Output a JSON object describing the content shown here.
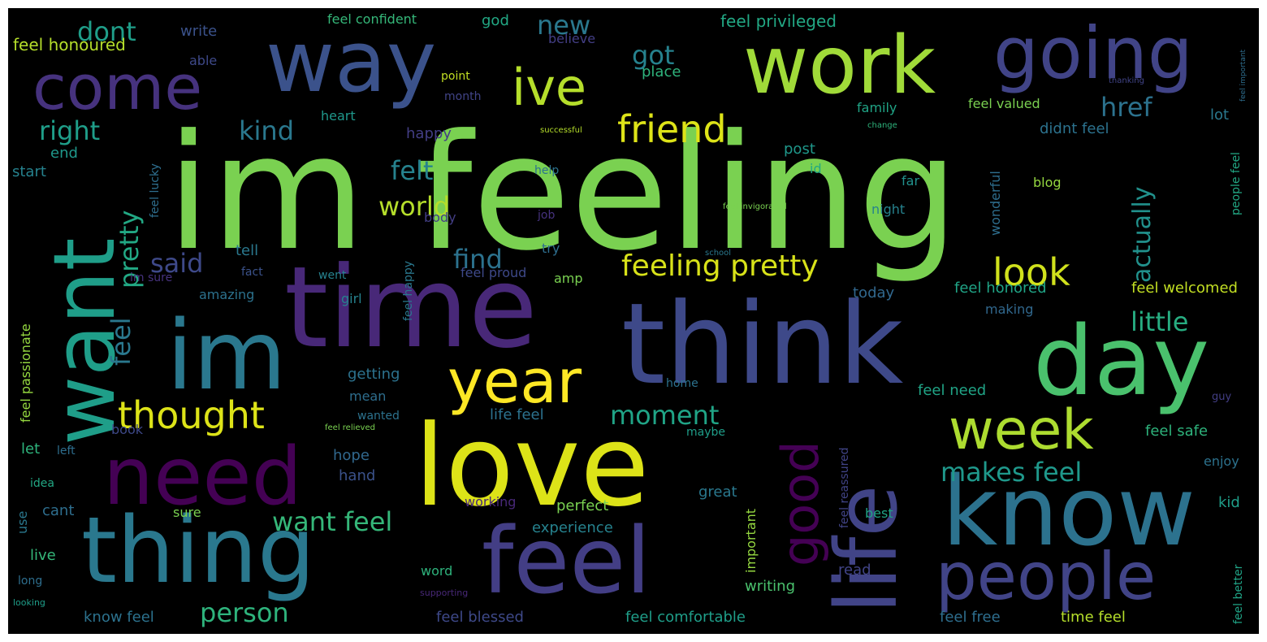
{
  "words": [
    {
      "text": "im feeling",
      "color": "#7ad151"
    },
    {
      "text": "time",
      "color": "#482878"
    },
    {
      "text": "think",
      "color": "#3e4989"
    },
    {
      "text": "love",
      "color": "#dde318"
    },
    {
      "text": "feel",
      "color": "#433e85"
    },
    {
      "text": "thing",
      "color": "#2a788e"
    },
    {
      "text": "know",
      "color": "#2c728e"
    },
    {
      "text": "im",
      "color": "#2a788e"
    },
    {
      "text": "way",
      "color": "#3b528b"
    },
    {
      "text": "work",
      "color": "#a0da39"
    },
    {
      "text": "day",
      "color": "#4ac16d"
    },
    {
      "text": "need",
      "color": "#440154"
    },
    {
      "text": "want",
      "color": "#1f9e89"
    },
    {
      "text": "life",
      "color": "#414487"
    },
    {
      "text": "going",
      "color": "#414487"
    },
    {
      "text": "come",
      "color": "#46327e"
    },
    {
      "text": "people",
      "color": "#414487"
    },
    {
      "text": "year",
      "color": "#fde725"
    },
    {
      "text": "week",
      "color": "#addc30"
    },
    {
      "text": "ive",
      "color": "#b5de2b"
    },
    {
      "text": "good",
      "color": "#440154"
    },
    {
      "text": "thought",
      "color": "#dde318"
    },
    {
      "text": "friend",
      "color": "#dde318"
    },
    {
      "text": "feeling pretty",
      "color": "#d8e219"
    },
    {
      "text": "look",
      "color": "#d0e11c"
    },
    {
      "text": "person",
      "color": "#2eb37c"
    },
    {
      "text": "makes feel",
      "color": "#1f988b"
    },
    {
      "text": "want feel",
      "color": "#35b779"
    },
    {
      "text": "moment",
      "color": "#20a486"
    },
    {
      "text": "little",
      "color": "#27ad81"
    },
    {
      "text": "world",
      "color": "#b5de2b"
    },
    {
      "text": "felt",
      "color": "#26828e"
    },
    {
      "text": "find",
      "color": "#2c728e"
    },
    {
      "text": "said",
      "color": "#3e4989"
    },
    {
      "text": "kind",
      "color": "#2a788e"
    },
    {
      "text": "right",
      "color": "#1f9e89"
    },
    {
      "text": "dont",
      "color": "#1f9e89"
    },
    {
      "text": "got",
      "color": "#26828e"
    },
    {
      "text": "new",
      "color": "#2a788e"
    },
    {
      "text": "href",
      "color": "#2c728e"
    },
    {
      "text": "actually",
      "color": "#21918c"
    },
    {
      "text": "pretty",
      "color": "#22a884"
    },
    {
      "text": "feel",
      "color": "#2a788e"
    },
    {
      "text": "important",
      "color": "#95d840"
    },
    {
      "text": "feel confident",
      "color": "#35b779"
    },
    {
      "text": "feel privileged",
      "color": "#22a884"
    },
    {
      "text": "feel honoured",
      "color": "#b5de2b"
    },
    {
      "text": "write",
      "color": "#3b528b"
    },
    {
      "text": "god",
      "color": "#22a884"
    },
    {
      "text": "believe",
      "color": "#433e85"
    },
    {
      "text": "able",
      "color": "#3e4989"
    },
    {
      "text": "point",
      "color": "#c2df23"
    },
    {
      "text": "place",
      "color": "#2eb37c"
    },
    {
      "text": "month",
      "color": "#414487"
    },
    {
      "text": "heart",
      "color": "#1f988b"
    },
    {
      "text": "happy",
      "color": "#433e85"
    },
    {
      "text": "family",
      "color": "#20a486"
    },
    {
      "text": "feel valued",
      "color": "#7ad151"
    },
    {
      "text": "lot",
      "color": "#2a788e"
    },
    {
      "text": "didnt feel",
      "color": "#2c728e"
    },
    {
      "text": "post",
      "color": "#1f988b"
    },
    {
      "text": "id",
      "color": "#22a884"
    },
    {
      "text": "far",
      "color": "#21918c"
    },
    {
      "text": "night",
      "color": "#26828e"
    },
    {
      "text": "blog",
      "color": "#95d840"
    },
    {
      "text": "wonderful",
      "color": "#2e6e8e"
    },
    {
      "text": "help",
      "color": "#2c728e"
    },
    {
      "text": "job",
      "color": "#46327e"
    },
    {
      "text": "feel lucky",
      "color": "#2e6e8e"
    },
    {
      "text": "end",
      "color": "#1f988b"
    },
    {
      "text": "start",
      "color": "#26828e"
    },
    {
      "text": "body",
      "color": "#433e85"
    },
    {
      "text": "try",
      "color": "#2e6e8e"
    },
    {
      "text": "tell",
      "color": "#2a788e"
    },
    {
      "text": "went",
      "color": "#26828e"
    },
    {
      "text": "amp",
      "color": "#7ad151"
    },
    {
      "text": "fact",
      "color": "#3b528b"
    },
    {
      "text": "feel proud",
      "color": "#3e4989"
    },
    {
      "text": "amazing",
      "color": "#2c728e"
    },
    {
      "text": "girl",
      "color": "#26828e"
    },
    {
      "text": "today",
      "color": "#31688e"
    },
    {
      "text": "feel honored",
      "color": "#20a486"
    },
    {
      "text": "feel welcomed",
      "color": "#c2df23"
    },
    {
      "text": "making",
      "color": "#31688e"
    },
    {
      "text": "feel passionate",
      "color": "#95d840"
    },
    {
      "text": "getting",
      "color": "#2c728e"
    },
    {
      "text": "mean",
      "color": "#2e6e8e"
    },
    {
      "text": "home",
      "color": "#2c728e"
    },
    {
      "text": "wanted",
      "color": "#2c728e"
    },
    {
      "text": "life feel",
      "color": "#2c728e"
    },
    {
      "text": "feel need",
      "color": "#20a486"
    },
    {
      "text": "feel safe",
      "color": "#2eb37c"
    },
    {
      "text": "book",
      "color": "#3e4989"
    },
    {
      "text": "let",
      "color": "#2eb37c"
    },
    {
      "text": "left",
      "color": "#2e6e8e"
    },
    {
      "text": "hope",
      "color": "#31688e"
    },
    {
      "text": "hand",
      "color": "#3b528b"
    },
    {
      "text": "maybe",
      "color": "#1f9e89"
    },
    {
      "text": "feel reassured",
      "color": "#414487"
    },
    {
      "text": "enjoy",
      "color": "#2c728e"
    },
    {
      "text": "kid",
      "color": "#1f9e89"
    },
    {
      "text": "idea",
      "color": "#22a884"
    },
    {
      "text": "use",
      "color": "#2a788e"
    },
    {
      "text": "cant",
      "color": "#2e6e8e"
    },
    {
      "text": "sure",
      "color": "#7ad151"
    },
    {
      "text": "great",
      "color": "#2a788e"
    },
    {
      "text": "working",
      "color": "#482878"
    },
    {
      "text": "perfect",
      "color": "#7ad151"
    },
    {
      "text": "best",
      "color": "#20a486"
    },
    {
      "text": "experience",
      "color": "#26828e"
    },
    {
      "text": "live",
      "color": "#35b779"
    },
    {
      "text": "long",
      "color": "#2e6e8e"
    },
    {
      "text": "word",
      "color": "#2eb37c"
    },
    {
      "text": "writing",
      "color": "#4ac16d"
    },
    {
      "text": "read",
      "color": "#414487"
    },
    {
      "text": "supporting",
      "color": "#482878"
    },
    {
      "text": "looking",
      "color": "#1f9e89"
    },
    {
      "text": "know feel",
      "color": "#2c728e"
    },
    {
      "text": "feel blessed",
      "color": "#3e4989"
    },
    {
      "text": "feel comfortable",
      "color": "#1f9e89"
    },
    {
      "text": "feel free",
      "color": "#2e6e8e"
    },
    {
      "text": "time feel",
      "color": "#b5de2b"
    },
    {
      "text": "feel better",
      "color": "#20a486"
    },
    {
      "text": "feel relieved",
      "color": "#7ad151"
    },
    {
      "text": "feel invigorated",
      "color": "#7ad151"
    },
    {
      "text": "successful",
      "color": "#b5de2b"
    },
    {
      "text": "change",
      "color": "#2eb37c"
    },
    {
      "text": "thanking",
      "color": "#414487"
    },
    {
      "text": "feel important",
      "color": "#2e6e8e"
    },
    {
      "text": "people feel",
      "color": "#22a884"
    },
    {
      "text": "feel happy",
      "color": "#2a788e"
    },
    {
      "text": "school",
      "color": "#2a788e"
    },
    {
      "text": "im sure",
      "color": "#46327e"
    },
    {
      "text": "guy",
      "color": "#433e85"
    }
  ]
}
